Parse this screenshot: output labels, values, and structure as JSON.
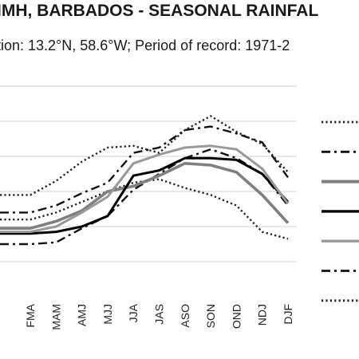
{
  "title": "IMH, BARBADOS - SEASONAL RAINFAL",
  "subtitle": "tion: 13.2°N, 58.6°W; Period of record: 1971-2",
  "chart_data": {
    "type": "line",
    "title": "IMH, BARBADOS - SEASONAL RAINFAL",
    "categories": [
      "FMA",
      "MAM",
      "AMJ",
      "MJJ",
      "JJA",
      "JAS",
      "ASO",
      "SON",
      "OND",
      "NDJ",
      "DJF"
    ],
    "ylim": [
      0,
      6
    ],
    "grid": true,
    "legend_position": "right",
    "series": [
      {
        "color": "#222222",
        "style": "dotted",
        "width": 2.4,
        "values": [
          2.2,
          2.4,
          2.7,
          3.0,
          3.25,
          3.35,
          3.1,
          2.9,
          2.6,
          1.85,
          1.65
        ]
      },
      {
        "color": "#111111",
        "style": "dash-dot",
        "width": 2.4,
        "values": [
          1.5,
          1.55,
          1.95,
          2.3,
          3.05,
          3.5,
          3.95,
          4.2,
          3.95,
          3.5,
          2.6
        ]
      },
      {
        "color": "#7f7f7f",
        "style": "solid",
        "width": 3.6,
        "values": [
          1.95,
          2.15,
          2.45,
          3.0,
          3.15,
          3.45,
          3.8,
          3.75,
          3.55,
          2.9,
          2.1
        ]
      },
      {
        "color": "#000000",
        "style": "solid",
        "width": 3.0,
        "values": [
          1.8,
          1.85,
          2.0,
          2.3,
          3.45,
          3.6,
          3.95,
          3.95,
          3.9,
          3.5,
          2.7
        ]
      },
      {
        "color": "#999999",
        "style": "solid",
        "width": 3.0,
        "values": [
          1.85,
          2.0,
          2.4,
          2.85,
          3.8,
          4.05,
          4.25,
          4.3,
          4.2,
          3.65,
          2.65
        ]
      },
      {
        "color": "#111111",
        "style": "dash-dot",
        "width": 2.4,
        "values": [
          2.4,
          2.6,
          2.95,
          3.25,
          4.1,
          4.25,
          4.75,
          4.85,
          4.65,
          4.4,
          3.4
        ]
      },
      {
        "color": "#222222",
        "style": "dotted",
        "width": 2.4,
        "values": [
          2.9,
          3.3,
          3.85,
          4.25,
          4.3,
          4.1,
          4.75,
          5.15,
          4.7,
          4.35,
          3.55
        ]
      }
    ]
  }
}
